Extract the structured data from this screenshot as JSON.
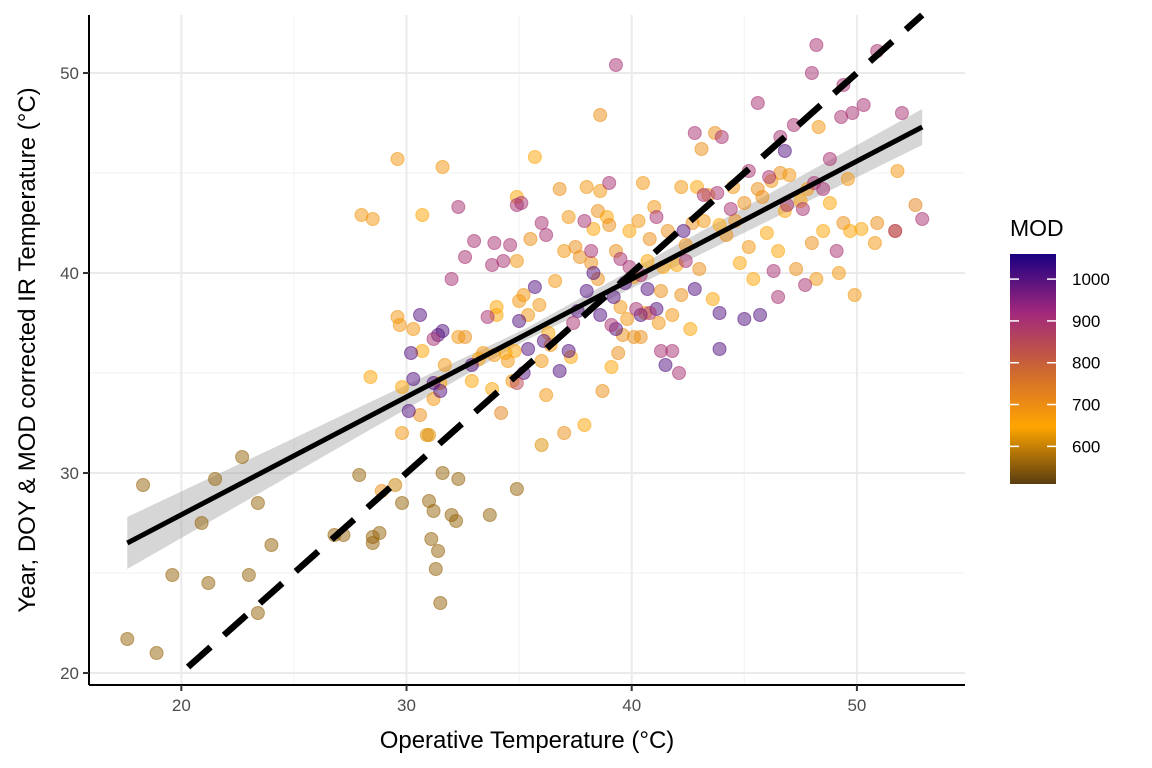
{
  "chart_data": {
    "type": "scatter",
    "xlabel": "Operative Temperature (°C)",
    "ylabel": "Year, DOY & MOD corrected IR Temperature (°C)",
    "xlim": [
      15.9,
      54.8
    ],
    "ylim": [
      19.4,
      52.9
    ],
    "xticks": [
      20,
      30,
      40,
      50
    ],
    "yticks": [
      20,
      30,
      40,
      50
    ],
    "grid": true,
    "legend_position": "right",
    "legend": {
      "title": "MOD",
      "type": "colorbar",
      "range": [
        510,
        1060
      ],
      "ticks": [
        600,
        700,
        800,
        900,
        1000
      ],
      "colors": [
        "#5a3d10",
        "#ffa500",
        "#cc6633",
        "#a0277e",
        "#1a0080"
      ]
    },
    "points": [
      [
        17.6,
        21.7,
        560
      ],
      [
        18.9,
        21.0,
        560
      ],
      [
        18.3,
        29.4,
        560
      ],
      [
        19.6,
        24.9,
        560
      ],
      [
        20.9,
        27.5,
        560
      ],
      [
        21.2,
        24.5,
        560
      ],
      [
        21.5,
        29.7,
        560
      ],
      [
        22.7,
        30.8,
        560
      ],
      [
        23.0,
        24.9,
        560
      ],
      [
        23.4,
        28.5,
        560
      ],
      [
        23.4,
        23.0,
        560
      ],
      [
        24.0,
        26.4,
        560
      ],
      [
        26.8,
        26.9,
        560
      ],
      [
        27.2,
        26.9,
        560
      ],
      [
        27.9,
        29.9,
        560
      ],
      [
        28.5,
        26.5,
        560
      ],
      [
        28.5,
        26.8,
        560
      ],
      [
        28.8,
        27.0,
        560
      ],
      [
        29.8,
        28.5,
        560
      ],
      [
        31.0,
        28.6,
        560
      ],
      [
        31.2,
        28.1,
        560
      ],
      [
        31.1,
        26.7,
        560
      ],
      [
        31.3,
        25.2,
        560
      ],
      [
        31.4,
        26.1,
        560
      ],
      [
        31.5,
        23.5,
        560
      ],
      [
        31.6,
        30.0,
        560
      ],
      [
        32.0,
        27.9,
        560
      ],
      [
        32.2,
        27.6,
        560
      ],
      [
        32.3,
        29.7,
        560
      ],
      [
        33.7,
        27.9,
        560
      ],
      [
        34.9,
        29.2,
        560
      ],
      [
        36.0,
        31.4,
        620
      ],
      [
        28.0,
        42.9,
        680
      ],
      [
        28.5,
        42.7,
        680
      ],
      [
        29.6,
        45.7,
        680
      ],
      [
        30.7,
        42.9,
        650
      ],
      [
        31.6,
        45.3,
        680
      ],
      [
        28.4,
        34.8,
        650
      ],
      [
        28.9,
        29.1,
        700
      ],
      [
        29.5,
        29.4,
        600
      ],
      [
        29.6,
        37.8,
        680
      ],
      [
        29.7,
        37.4,
        680
      ],
      [
        29.8,
        32.0,
        680
      ],
      [
        29.8,
        34.3,
        650
      ],
      [
        30.3,
        37.2,
        680
      ],
      [
        30.6,
        32.9,
        700
      ],
      [
        30.7,
        36.1,
        650
      ],
      [
        30.9,
        31.9,
        620
      ],
      [
        31.0,
        31.9,
        620
      ],
      [
        31.2,
        33.7,
        680
      ],
      [
        31.5,
        34.5,
        650
      ],
      [
        31.7,
        35.4,
        680
      ],
      [
        32.3,
        36.8,
        680
      ],
      [
        32.6,
        36.8,
        700
      ],
      [
        32.9,
        34.6,
        650
      ],
      [
        33.2,
        35.7,
        650
      ],
      [
        33.4,
        36.0,
        680
      ],
      [
        33.8,
        34.2,
        650
      ],
      [
        33.9,
        35.9,
        680
      ],
      [
        34.0,
        37.9,
        650
      ],
      [
        34.0,
        38.3,
        650
      ],
      [
        34.2,
        33.0,
        720
      ],
      [
        34.4,
        36.0,
        650
      ],
      [
        34.5,
        35.6,
        680
      ],
      [
        34.7,
        34.6,
        680
      ],
      [
        34.8,
        36.1,
        650
      ],
      [
        34.9,
        40.6,
        680
      ],
      [
        34.9,
        43.8,
        650
      ],
      [
        35.0,
        38.6,
        680
      ],
      [
        35.2,
        38.9,
        680
      ],
      [
        35.4,
        37.9,
        680
      ],
      [
        35.5,
        41.7,
        700
      ],
      [
        35.7,
        45.8,
        650
      ],
      [
        35.9,
        38.4,
        680
      ],
      [
        36.0,
        35.6,
        680
      ],
      [
        36.2,
        33.9,
        680
      ],
      [
        36.3,
        37.0,
        650
      ],
      [
        36.4,
        36.4,
        680
      ],
      [
        36.6,
        39.6,
        680
      ],
      [
        36.8,
        44.2,
        700
      ],
      [
        37.0,
        32.0,
        700
      ],
      [
        37.0,
        41.1,
        680
      ],
      [
        37.2,
        42.8,
        680
      ],
      [
        37.3,
        35.8,
        650
      ],
      [
        37.5,
        41.3,
        700
      ],
      [
        37.7,
        40.8,
        700
      ],
      [
        37.9,
        32.4,
        650
      ],
      [
        38.0,
        44.3,
        680
      ],
      [
        38.2,
        40.5,
        700
      ],
      [
        38.3,
        42.2,
        650
      ],
      [
        38.5,
        39.7,
        700
      ],
      [
        38.5,
        43.1,
        700
      ],
      [
        38.6,
        47.9,
        700
      ],
      [
        38.6,
        44.1,
        680
      ],
      [
        38.7,
        34.1,
        700
      ],
      [
        38.9,
        42.8,
        650
      ],
      [
        39.0,
        42.4,
        700
      ],
      [
        39.1,
        35.3,
        650
      ],
      [
        39.3,
        41.1,
        700
      ],
      [
        39.4,
        36.0,
        700
      ],
      [
        39.5,
        38.3,
        680
      ],
      [
        39.6,
        36.9,
        700
      ],
      [
        39.8,
        37.7,
        680
      ],
      [
        39.9,
        42.1,
        650
      ],
      [
        40.1,
        36.8,
        700
      ],
      [
        40.1,
        39.8,
        680
      ],
      [
        40.3,
        42.6,
        680
      ],
      [
        40.4,
        36.8,
        700
      ],
      [
        40.5,
        44.5,
        680
      ],
      [
        40.6,
        38.0,
        680
      ],
      [
        40.7,
        40.6,
        650
      ],
      [
        40.8,
        41.7,
        700
      ],
      [
        41.0,
        43.3,
        680
      ],
      [
        41.2,
        37.5,
        680
      ],
      [
        41.3,
        39.1,
        700
      ],
      [
        41.4,
        40.3,
        650
      ],
      [
        41.6,
        42.1,
        700
      ],
      [
        41.8,
        37.9,
        680
      ],
      [
        42.0,
        40.4,
        650
      ],
      [
        42.2,
        44.3,
        680
      ],
      [
        42.2,
        38.9,
        700
      ],
      [
        42.4,
        41.4,
        700
      ],
      [
        42.6,
        37.2,
        650
      ],
      [
        42.7,
        42.5,
        700
      ],
      [
        42.9,
        44.3,
        650
      ],
      [
        43.0,
        40.2,
        700
      ],
      [
        43.1,
        46.2,
        700
      ],
      [
        43.2,
        42.6,
        680
      ],
      [
        43.4,
        43.9,
        700
      ],
      [
        43.6,
        38.7,
        650
      ],
      [
        43.7,
        47.0,
        700
      ],
      [
        43.9,
        42.4,
        650
      ],
      [
        44.2,
        41.9,
        700
      ],
      [
        44.5,
        44.3,
        680
      ],
      [
        44.6,
        42.6,
        700
      ],
      [
        44.8,
        40.5,
        650
      ],
      [
        45.0,
        43.5,
        700
      ],
      [
        45.2,
        41.3,
        680
      ],
      [
        45.4,
        39.7,
        650
      ],
      [
        45.6,
        44.2,
        700
      ],
      [
        45.8,
        43.8,
        700
      ],
      [
        46.0,
        42.0,
        650
      ],
      [
        46.2,
        44.6,
        680
      ],
      [
        46.5,
        41.1,
        650
      ],
      [
        46.6,
        45.0,
        700
      ],
      [
        46.8,
        43.1,
        650
      ],
      [
        47.0,
        44.9,
        680
      ],
      [
        47.3,
        40.2,
        700
      ],
      [
        47.5,
        43.6,
        650
      ],
      [
        47.8,
        44.2,
        680
      ],
      [
        48.0,
        41.5,
        700
      ],
      [
        48.2,
        39.7,
        680
      ],
      [
        48.3,
        47.3,
        680
      ],
      [
        48.5,
        42.1,
        650
      ],
      [
        48.8,
        43.5,
        650
      ],
      [
        49.2,
        40.0,
        680
      ],
      [
        49.4,
        42.5,
        700
      ],
      [
        49.6,
        44.7,
        680
      ],
      [
        49.7,
        42.1,
        650
      ],
      [
        49.9,
        38.9,
        680
      ],
      [
        50.2,
        42.2,
        650
      ],
      [
        50.8,
        41.5,
        680
      ],
      [
        50.9,
        42.5,
        700
      ],
      [
        51.7,
        42.1,
        680
      ],
      [
        51.8,
        45.1,
        680
      ],
      [
        52.6,
        43.4,
        720
      ],
      [
        30.2,
        36.0,
        1000
      ],
      [
        30.1,
        33.1,
        1000
      ],
      [
        30.3,
        34.7,
        1000
      ],
      [
        30.6,
        37.9,
        1000
      ],
      [
        31.2,
        34.5,
        1000
      ],
      [
        31.4,
        36.9,
        1000
      ],
      [
        31.6,
        37.1,
        1000
      ],
      [
        31.5,
        34.1,
        1000
      ],
      [
        32.9,
        35.4,
        1000
      ],
      [
        35.0,
        37.6,
        1000
      ],
      [
        35.2,
        35.0,
        1000
      ],
      [
        35.4,
        36.2,
        1000
      ],
      [
        35.7,
        39.3,
        1000
      ],
      [
        36.1,
        36.6,
        1000
      ],
      [
        36.8,
        35.1,
        1000
      ],
      [
        37.2,
        36.1,
        1000
      ],
      [
        37.6,
        38.1,
        1000
      ],
      [
        38.0,
        39.1,
        1000
      ],
      [
        38.3,
        40.0,
        1000
      ],
      [
        38.6,
        37.9,
        1000
      ],
      [
        39.2,
        38.8,
        1000
      ],
      [
        39.3,
        37.2,
        1000
      ],
      [
        39.7,
        39.5,
        1000
      ],
      [
        40.4,
        37.9,
        1000
      ],
      [
        40.7,
        39.2,
        1000
      ],
      [
        41.1,
        38.2,
        1000
      ],
      [
        41.5,
        35.4,
        1000
      ],
      [
        42.3,
        42.1,
        1000
      ],
      [
        42.8,
        39.2,
        1000
      ],
      [
        43.9,
        38.0,
        1000
      ],
      [
        43.9,
        36.2,
        1000
      ],
      [
        45.0,
        37.7,
        1000
      ],
      [
        45.7,
        37.9,
        1000
      ],
      [
        46.8,
        46.1,
        1000
      ],
      [
        31.2,
        36.7,
        900
      ],
      [
        32.0,
        39.7,
        900
      ],
      [
        32.3,
        43.3,
        900
      ],
      [
        32.6,
        40.8,
        900
      ],
      [
        33.0,
        41.6,
        900
      ],
      [
        33.6,
        37.8,
        900
      ],
      [
        33.8,
        40.4,
        900
      ],
      [
        33.9,
        41.5,
        900
      ],
      [
        34.3,
        40.6,
        900
      ],
      [
        34.6,
        41.4,
        900
      ],
      [
        34.9,
        43.4,
        900
      ],
      [
        35.1,
        43.5,
        900
      ],
      [
        36.0,
        42.5,
        900
      ],
      [
        36.2,
        41.9,
        900
      ],
      [
        37.4,
        37.5,
        900
      ],
      [
        37.9,
        42.6,
        900
      ],
      [
        38.2,
        41.1,
        900
      ],
      [
        39.0,
        44.5,
        900
      ],
      [
        39.1,
        37.4,
        900
      ],
      [
        39.5,
        40.7,
        900
      ],
      [
        39.9,
        40.3,
        900
      ],
      [
        40.2,
        38.2,
        900
      ],
      [
        40.4,
        39.9,
        900
      ],
      [
        40.8,
        38.0,
        900
      ],
      [
        41.1,
        42.8,
        900
      ],
      [
        41.3,
        36.1,
        900
      ],
      [
        41.8,
        36.1,
        900
      ],
      [
        42.1,
        35.0,
        900
      ],
      [
        42.4,
        40.6,
        900
      ],
      [
        42.8,
        47.0,
        900
      ],
      [
        43.2,
        43.9,
        900
      ],
      [
        43.8,
        44.0,
        900
      ],
      [
        44.0,
        46.8,
        900
      ],
      [
        44.4,
        43.2,
        900
      ],
      [
        45.2,
        45.1,
        900
      ],
      [
        45.6,
        48.5,
        900
      ],
      [
        46.1,
        44.8,
        900
      ],
      [
        46.3,
        40.1,
        900
      ],
      [
        46.5,
        38.8,
        900
      ],
      [
        46.6,
        46.8,
        900
      ],
      [
        46.9,
        43.4,
        900
      ],
      [
        47.2,
        47.4,
        900
      ],
      [
        47.6,
        43.2,
        900
      ],
      [
        47.7,
        39.4,
        900
      ],
      [
        48.0,
        50.0,
        900
      ],
      [
        48.1,
        44.5,
        900
      ],
      [
        48.2,
        51.4,
        900
      ],
      [
        48.5,
        44.2,
        900
      ],
      [
        48.8,
        45.7,
        900
      ],
      [
        49.1,
        41.1,
        900
      ],
      [
        49.3,
        47.8,
        900
      ],
      [
        49.4,
        49.4,
        900
      ],
      [
        49.8,
        48.0,
        900
      ],
      [
        50.3,
        48.4,
        900
      ],
      [
        50.9,
        51.1,
        900
      ],
      [
        51.7,
        42.1,
        900
      ],
      [
        52.0,
        48.0,
        900
      ],
      [
        52.9,
        42.7,
        900
      ],
      [
        39.3,
        50.4,
        900
      ],
      [
        34.9,
        34.5,
        850
      ]
    ],
    "fit_line": {
      "x": [
        17.6,
        52.9
      ],
      "y": [
        26.5,
        47.3
      ]
    },
    "confidence_band": {
      "x": [
        17.6,
        35.25,
        52.9
      ],
      "upper": [
        27.8,
        37.2,
        48.2
      ],
      "lower": [
        25.2,
        36.6,
        46.4
      ]
    },
    "identity_line": {
      "x": [
        20.3,
        52.9
      ],
      "y": [
        20.3,
        52.9
      ]
    }
  }
}
